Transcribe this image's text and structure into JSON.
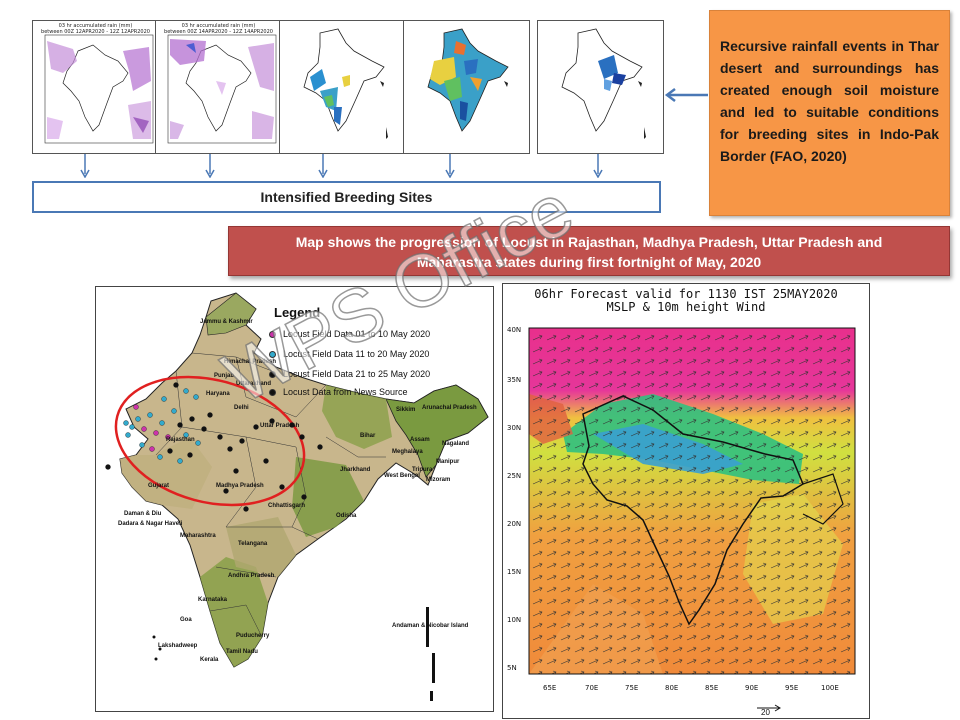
{
  "rain_panels": [
    {
      "title_line1": "03 hr accumulated rain (mm)",
      "title_line2": "between 00Z 12APR2020 - 12Z 12APR2020"
    },
    {
      "title_line1": "03 hr accumulated rain (mm)",
      "title_line2": "between 00Z 14APR2020 - 12Z 14APR2020"
    }
  ],
  "breeding_box": {
    "label": "Intensified Breeding Sites"
  },
  "note": {
    "text": "Recursive rainfall events in Thar desert and surroundings has created enough soil moisture and led to suitable conditions for breeding sites in Indo-Pak Border (FAO, 2020)"
  },
  "banner": {
    "line1": "Map shows the progression of Locust in Rajasthan, Madhya Pradesh, Uttar Pradesh and",
    "line2": "Maharastra states during first fortnight of May, 2020"
  },
  "locust_map": {
    "legend_title": "Legend",
    "legend": [
      {
        "label": "Locust Field Data 01 to 10 May 2020",
        "color": "#cc33aa"
      },
      {
        "label": "Locust Field Data 11 to 20 May 2020",
        "color": "#33aacc"
      },
      {
        "label": "Locust Field Data 21 to 25 May 2020",
        "color": "#111111"
      },
      {
        "label": "Locust Data from News Source",
        "color": "#111111"
      }
    ],
    "places": [
      "Jammu & Kashmir",
      "Himachal Pradesh",
      "Punjab",
      "Uttarakhand",
      "Haryana",
      "Delhi",
      "Rajasthan",
      "Uttar Pradesh",
      "Bihar",
      "Jharkhand",
      "West Bengal",
      "Gujarat",
      "Madhya Pradesh",
      "Chhattisgarh",
      "Odisha",
      "Daman & Diu",
      "Dadara & Nagar Haveli",
      "Maharashtra",
      "Telangana",
      "Andhra Pradesh",
      "Karnataka",
      "Goa",
      "Tamil Nadu",
      "Kerala",
      "Puducherry",
      "Lakshadweep",
      "Andaman & Nicobar Island",
      "Arunachal Pradesh",
      "Assam",
      "Meghalaya",
      "Nagaland",
      "Manipur",
      "Mizoram",
      "Tripura",
      "Sikkim"
    ]
  },
  "forecast_map": {
    "title_line1": "06hr Forecast valid for 1130 IST 25MAY2020",
    "title_line2": "MSLP & 10m height Wind",
    "lat_labels": [
      "40N",
      "35N",
      "30N",
      "25N",
      "20N",
      "15N",
      "10N",
      "5N"
    ],
    "lon_labels": [
      "65E",
      "70E",
      "75E",
      "80E",
      "85E",
      "90E",
      "95E",
      "100E"
    ],
    "wind_ref": "20"
  },
  "watermark": "WPS Office",
  "colors": {
    "note_bg": "#f79646",
    "banner_bg": "#c0504d",
    "box_border": "#4a78b5",
    "locust_ellipse": "#e02020"
  }
}
